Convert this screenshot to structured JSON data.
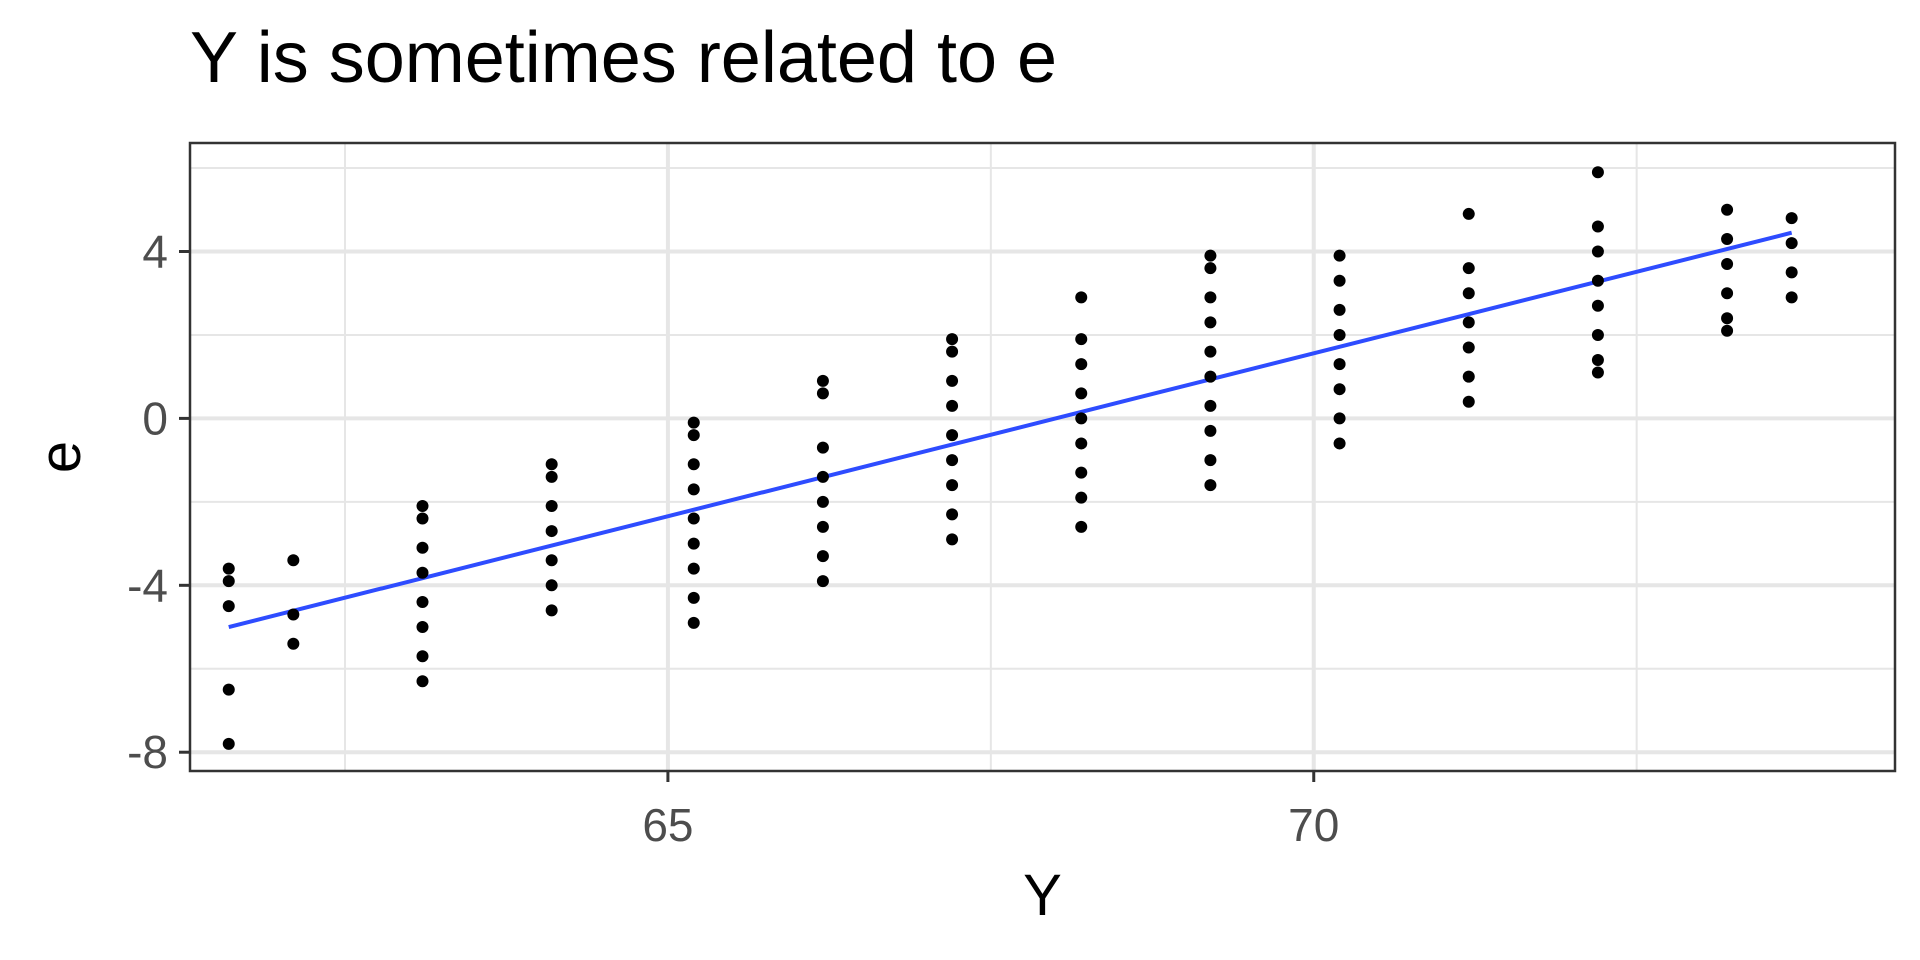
{
  "chart_data": {
    "type": "scatter",
    "title": "Y is sometimes related to e",
    "xlabel": "Y",
    "ylabel": "e",
    "xlim": [
      61.3,
      74.5
    ],
    "ylim": [
      -8.45,
      6.6
    ],
    "xticks": [
      65,
      70
    ],
    "yticks": [
      -8,
      -4,
      0,
      4
    ],
    "yticklabels": [
      "-8",
      "-4",
      "0",
      "4"
    ],
    "grid": true,
    "points": [
      {
        "x": 61.6,
        "y": -3.6
      },
      {
        "x": 61.6,
        "y": -3.9
      },
      {
        "x": 61.6,
        "y": -4.5
      },
      {
        "x": 61.6,
        "y": -6.5
      },
      {
        "x": 61.6,
        "y": -7.8
      },
      {
        "x": 62.1,
        "y": -3.4
      },
      {
        "x": 62.1,
        "y": -4.7
      },
      {
        "x": 62.1,
        "y": -5.4
      },
      {
        "x": 63.1,
        "y": -2.1
      },
      {
        "x": 63.1,
        "y": -2.4
      },
      {
        "x": 63.1,
        "y": -3.1
      },
      {
        "x": 63.1,
        "y": -3.7
      },
      {
        "x": 63.1,
        "y": -4.4
      },
      {
        "x": 63.1,
        "y": -5.0
      },
      {
        "x": 63.1,
        "y": -5.7
      },
      {
        "x": 63.1,
        "y": -6.3
      },
      {
        "x": 64.1,
        "y": -1.1
      },
      {
        "x": 64.1,
        "y": -1.4
      },
      {
        "x": 64.1,
        "y": -2.1
      },
      {
        "x": 64.1,
        "y": -2.7
      },
      {
        "x": 64.1,
        "y": -3.4
      },
      {
        "x": 64.1,
        "y": -4.0
      },
      {
        "x": 64.1,
        "y": -4.6
      },
      {
        "x": 65.2,
        "y": -0.1
      },
      {
        "x": 65.2,
        "y": -0.4
      },
      {
        "x": 65.2,
        "y": -1.1
      },
      {
        "x": 65.2,
        "y": -1.7
      },
      {
        "x": 65.2,
        "y": -2.4
      },
      {
        "x": 65.2,
        "y": -3.0
      },
      {
        "x": 65.2,
        "y": -3.6
      },
      {
        "x": 65.2,
        "y": -4.3
      },
      {
        "x": 65.2,
        "y": -4.9
      },
      {
        "x": 66.2,
        "y": 0.9
      },
      {
        "x": 66.2,
        "y": 0.6
      },
      {
        "x": 66.2,
        "y": -0.7
      },
      {
        "x": 66.2,
        "y": -1.4
      },
      {
        "x": 66.2,
        "y": -2.0
      },
      {
        "x": 66.2,
        "y": -2.6
      },
      {
        "x": 66.2,
        "y": -3.3
      },
      {
        "x": 66.2,
        "y": -3.9
      },
      {
        "x": 67.2,
        "y": 1.9
      },
      {
        "x": 67.2,
        "y": 1.6
      },
      {
        "x": 67.2,
        "y": 0.9
      },
      {
        "x": 67.2,
        "y": 0.3
      },
      {
        "x": 67.2,
        "y": -0.4
      },
      {
        "x": 67.2,
        "y": -1.0
      },
      {
        "x": 67.2,
        "y": -1.6
      },
      {
        "x": 67.2,
        "y": -2.3
      },
      {
        "x": 67.2,
        "y": -2.9
      },
      {
        "x": 68.2,
        "y": 2.9
      },
      {
        "x": 68.2,
        "y": 1.9
      },
      {
        "x": 68.2,
        "y": 1.3
      },
      {
        "x": 68.2,
        "y": 0.6
      },
      {
        "x": 68.2,
        "y": 0.0
      },
      {
        "x": 68.2,
        "y": -0.6
      },
      {
        "x": 68.2,
        "y": -1.3
      },
      {
        "x": 68.2,
        "y": -1.9
      },
      {
        "x": 68.2,
        "y": -2.6
      },
      {
        "x": 69.2,
        "y": 3.9
      },
      {
        "x": 69.2,
        "y": 3.6
      },
      {
        "x": 69.2,
        "y": 2.9
      },
      {
        "x": 69.2,
        "y": 2.3
      },
      {
        "x": 69.2,
        "y": 1.6
      },
      {
        "x": 69.2,
        "y": 1.0
      },
      {
        "x": 69.2,
        "y": 0.3
      },
      {
        "x": 69.2,
        "y": -0.3
      },
      {
        "x": 69.2,
        "y": -1.0
      },
      {
        "x": 69.2,
        "y": -1.6
      },
      {
        "x": 70.2,
        "y": 3.9
      },
      {
        "x": 70.2,
        "y": 3.3
      },
      {
        "x": 70.2,
        "y": 2.6
      },
      {
        "x": 70.2,
        "y": 2.0
      },
      {
        "x": 70.2,
        "y": 1.3
      },
      {
        "x": 70.2,
        "y": 0.7
      },
      {
        "x": 70.2,
        "y": 0.0
      },
      {
        "x": 70.2,
        "y": -0.6
      },
      {
        "x": 71.2,
        "y": 4.9
      },
      {
        "x": 71.2,
        "y": 3.6
      },
      {
        "x": 71.2,
        "y": 3.0
      },
      {
        "x": 71.2,
        "y": 2.3
      },
      {
        "x": 71.2,
        "y": 1.7
      },
      {
        "x": 71.2,
        "y": 1.0
      },
      {
        "x": 71.2,
        "y": 0.4
      },
      {
        "x": 72.2,
        "y": 5.9
      },
      {
        "x": 72.2,
        "y": 4.6
      },
      {
        "x": 72.2,
        "y": 4.0
      },
      {
        "x": 72.2,
        "y": 3.3
      },
      {
        "x": 72.2,
        "y": 2.7
      },
      {
        "x": 72.2,
        "y": 2.0
      },
      {
        "x": 72.2,
        "y": 1.4
      },
      {
        "x": 72.2,
        "y": 1.1
      },
      {
        "x": 73.2,
        "y": 5.0
      },
      {
        "x": 73.2,
        "y": 4.3
      },
      {
        "x": 73.2,
        "y": 3.7
      },
      {
        "x": 73.2,
        "y": 3.0
      },
      {
        "x": 73.2,
        "y": 2.4
      },
      {
        "x": 73.2,
        "y": 2.1
      },
      {
        "x": 73.7,
        "y": 4.8
      },
      {
        "x": 73.7,
        "y": 4.2
      },
      {
        "x": 73.7,
        "y": 3.5
      },
      {
        "x": 73.7,
        "y": 2.9
      }
    ],
    "fit_line": {
      "x": [
        61.6,
        73.7
      ],
      "y": [
        -5.0,
        4.45
      ]
    },
    "colors": {
      "points": "#000000",
      "fit_line": "#2e4cff",
      "grid": "#e6e6e6",
      "panel_border": "#333333",
      "tick_label": "#4d4d4d"
    }
  }
}
